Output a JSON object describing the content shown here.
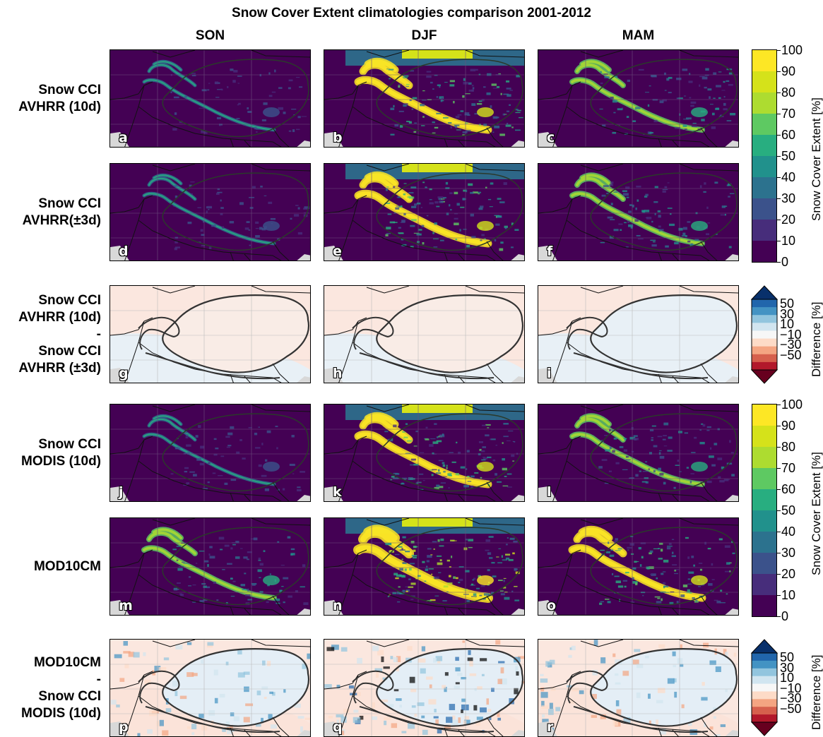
{
  "title": "Snow Cover Extent climatologies comparison 2001-2012",
  "columns": [
    "SON",
    "DJF",
    "MAM"
  ],
  "rows": [
    {
      "label": "Snow CCI\nAVHRR (10d)",
      "type": "extent",
      "panels": [
        "a",
        "b",
        "c"
      ]
    },
    {
      "label": "Snow CCI\nAVHRR(±3d)",
      "type": "extent",
      "panels": [
        "d",
        "e",
        "f"
      ]
    },
    {
      "label": "Snow CCI\nAVHRR (10d)\n-\nSnow CCI\nAVHRR (±3d)",
      "type": "diff",
      "panels": [
        "g",
        "h",
        "i"
      ]
    },
    {
      "label": "Snow CCI\nMODIS (10d)",
      "type": "extent",
      "panels": [
        "j",
        "k",
        "l"
      ]
    },
    {
      "label": "MOD10CM",
      "type": "extent",
      "panels": [
        "m",
        "n",
        "o"
      ]
    },
    {
      "label": "MOD10CM\n-\nSnow CCI\nMODIS (10d)",
      "type": "diff",
      "panels": [
        "p",
        "q",
        "r"
      ]
    }
  ],
  "colorbars": {
    "extent": {
      "label": "Snow Cover Extent [%]",
      "ticks": [
        "0",
        "10",
        "20",
        "30",
        "40",
        "50",
        "60",
        "70",
        "80",
        "90",
        "100"
      ],
      "colors": [
        "#440154",
        "#472d7b",
        "#3b528b",
        "#2c728e",
        "#21918c",
        "#28ae80",
        "#5ec962",
        "#addc30",
        "#d5e21a",
        "#fde725"
      ]
    },
    "diff": {
      "label": "Difference [%]",
      "ticks": [
        "50",
        "30",
        "10",
        "−10",
        "−30",
        "−50"
      ],
      "colors": [
        "#08306b",
        "#2166ac",
        "#4393c3",
        "#92c5de",
        "#d1e5f0",
        "#f7f7f7",
        "#fddbc7",
        "#f4a582",
        "#d6604d",
        "#b2182b",
        "#67001f"
      ]
    }
  },
  "chart_data": {
    "type": "heatmap",
    "title": "Snow Cover Extent climatologies comparison 2001-2012",
    "columns": [
      "SON",
      "DJF",
      "MAM"
    ],
    "extent_range": [
      0,
      100
    ],
    "extent_levels": [
      0,
      10,
      20,
      30,
      40,
      50,
      60,
      70,
      80,
      90,
      100
    ],
    "difference_levels": [
      -50,
      -30,
      -10,
      10,
      30,
      50
    ],
    "difference_extend": "both"
  }
}
